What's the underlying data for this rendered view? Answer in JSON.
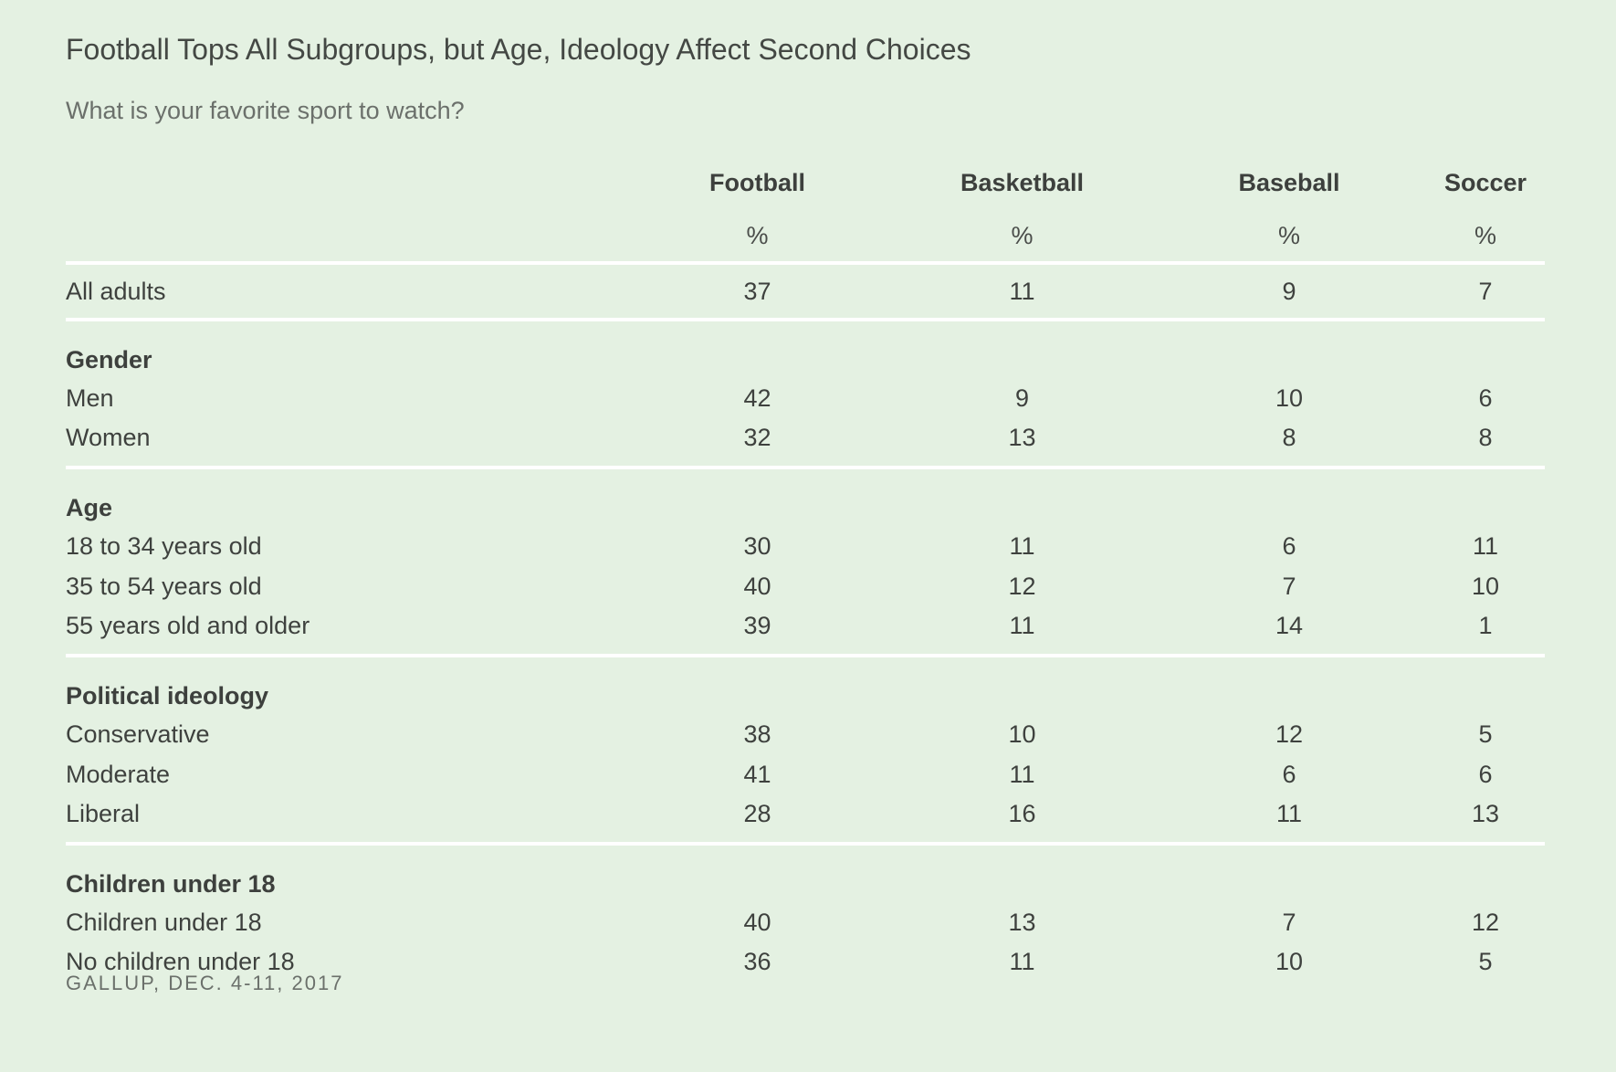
{
  "title": "Football Tops All Subgroups, but Age, Ideology Affect Second Choices",
  "subtitle": "What is your favorite sport to watch?",
  "source": "GALLUP, DEC. 4-11, 2017",
  "chart_data": {
    "type": "table",
    "title": "Football Tops All Subgroups, but Age, Ideology Affect Second Choices",
    "subtitle": "What is your favorite sport to watch?",
    "columns": [
      "Football",
      "Basketball",
      "Baseball",
      "Soccer"
    ],
    "unit": "%",
    "all_adults": {
      "label": "All adults",
      "values": [
        37,
        11,
        9,
        7
      ]
    },
    "groups": [
      {
        "name": "Gender",
        "rows": [
          {
            "label": "Men",
            "values": [
              42,
              9,
              10,
              6
            ]
          },
          {
            "label": "Women",
            "values": [
              32,
              13,
              8,
              8
            ]
          }
        ]
      },
      {
        "name": "Age",
        "rows": [
          {
            "label": "18 to 34 years old",
            "values": [
              30,
              11,
              6,
              11
            ]
          },
          {
            "label": "35 to 54 years old",
            "values": [
              40,
              12,
              7,
              10
            ]
          },
          {
            "label": "55 years old and older",
            "values": [
              39,
              11,
              14,
              1
            ]
          }
        ]
      },
      {
        "name": "Political ideology",
        "rows": [
          {
            "label": "Conservative",
            "values": [
              38,
              10,
              12,
              5
            ]
          },
          {
            "label": "Moderate",
            "values": [
              41,
              11,
              6,
              6
            ]
          },
          {
            "label": "Liberal",
            "values": [
              28,
              16,
              11,
              13
            ]
          }
        ]
      },
      {
        "name": "Children under 18",
        "rows": [
          {
            "label": "Children under 18",
            "values": [
              40,
              13,
              7,
              12
            ]
          },
          {
            "label": "No children under 18",
            "values": [
              36,
              11,
              10,
              5
            ]
          }
        ]
      }
    ]
  }
}
